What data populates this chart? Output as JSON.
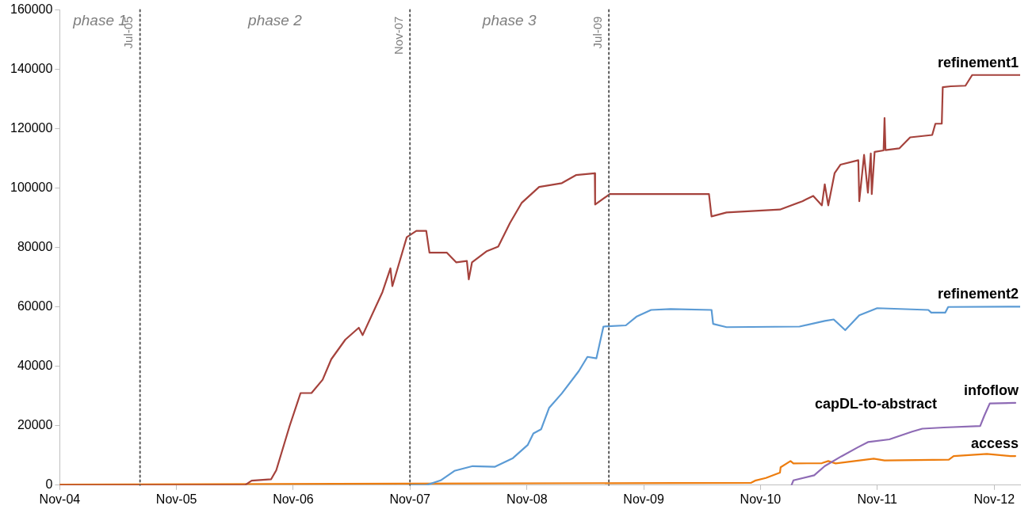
{
  "chart_data": {
    "type": "line",
    "legend": false,
    "grid": false,
    "marker": "none",
    "line_style": "solid",
    "xlim": [
      "2004-11",
      "2013-01-21"
    ],
    "xticks": [
      {
        "value": "2004-11",
        "label": "Nov-04"
      },
      {
        "value": "2005-11",
        "label": "Nov-05"
      },
      {
        "value": "2006-11",
        "label": "Nov-06"
      },
      {
        "value": "2007-11",
        "label": "Nov-07"
      },
      {
        "value": "2008-11",
        "label": "Nov-08"
      },
      {
        "value": "2009-11",
        "label": "Nov-09"
      },
      {
        "value": "2010-11",
        "label": "Nov-10"
      },
      {
        "value": "2011-11",
        "label": "Nov-11"
      },
      {
        "value": "2012-11",
        "label": "Nov-12"
      }
    ],
    "ylim": [
      0,
      160000
    ],
    "yticks": [
      0,
      20000,
      40000,
      60000,
      80000,
      100000,
      120000,
      140000,
      160000
    ],
    "ref_lines": [
      {
        "axis": "x",
        "value": "2005-07-10",
        "label": "Jul-05",
        "line_style": "dotted",
        "color": "#595959"
      },
      {
        "axis": "x",
        "value": "2007-11",
        "label": "Nov-07",
        "line_style": "dotted",
        "color": "#595959"
      },
      {
        "axis": "x",
        "value": "2009-07-15",
        "label": "Jul-09",
        "line_style": "dotted",
        "color": "#595959"
      }
    ],
    "annotations": [
      "phase 1",
      "phase 2",
      "phase 3",
      "capDL-to-abstract"
    ],
    "series": [
      {
        "name": "refinement1",
        "color": "#a5423c",
        "x": [
          "2004-11",
          "2006-06-03",
          "2006-06-24",
          "2006-08-24",
          "2006-09-09",
          "2006-10-21",
          "2006-11-24",
          "2006-12-28",
          "2007-02-01",
          "2007-02-28",
          "2007-04-13",
          "2007-05-25",
          "2007-06-06",
          "2007-08-07",
          "2007-09-01",
          "2007-09-07",
          "2007-10-22",
          "2007-11-21",
          "2007-12-22",
          "2008-01-01",
          "2008-02-24",
          "2008-03-25",
          "2008-04-27",
          "2008-05-03",
          "2008-05-13",
          "2008-06-27",
          "2008-08-03",
          "2008-09-09",
          "2008-10-15",
          "2008-12-09",
          "2009-02-18",
          "2009-04-03",
          "2009-06-01",
          "2009-06-02",
          "2009-07-18",
          "2010-05-24",
          "2010-06-01",
          "2010-07-18",
          "2011-01-01",
          "2011-03-12",
          "2011-04-15",
          "2011-05-12",
          "2011-05-21",
          "2011-06-01",
          "2011-06-21",
          "2011-07-09",
          "2011-09-03",
          "2011-09-06",
          "2011-09-21",
          "2011-10-03",
          "2011-10-12",
          "2011-10-15",
          "2011-10-24",
          "2011-11-21",
          "2011-11-24",
          "2011-11-27",
          "2012-01-09",
          "2012-02-12",
          "2012-04-21",
          "2012-05-01",
          "2012-05-21",
          "2012-05-24",
          "2012-06-18",
          "2012-08-03",
          "2012-08-24",
          "2013-01-21"
        ],
        "values": [
          0,
          0,
          1500,
          2000,
          5000,
          20000,
          31000,
          31000,
          35500,
          42400,
          49000,
          53000,
          50500,
          65000,
          73000,
          67000,
          83500,
          85600,
          85600,
          78300,
          78300,
          75000,
          75500,
          69300,
          75000,
          78700,
          80300,
          88300,
          95000,
          100400,
          101700,
          104400,
          105000,
          94500,
          98000,
          98000,
          90500,
          91800,
          92800,
          95600,
          97400,
          94200,
          101300,
          94200,
          105100,
          107900,
          109400,
          95600,
          111200,
          98500,
          111700,
          98000,
          112200,
          112700,
          123600,
          112800,
          113400,
          117100,
          117900,
          121700,
          121700,
          134000,
          134300,
          134500,
          138100,
          138100
        ]
      },
      {
        "name": "refinement2",
        "color": "#5b9bd5",
        "x": [
          "2007-11",
          "2007-12-22",
          "2008-02-05",
          "2008-03-19",
          "2008-05-15",
          "2008-07-24",
          "2008-09-18",
          "2008-11-03",
          "2008-11-21",
          "2008-12-15",
          "2009-01-09",
          "2009-02-18",
          "2009-04-12",
          "2009-05-09",
          "2009-06-06",
          "2009-06-28",
          "2009-09-06",
          "2009-10-09",
          "2009-11-24",
          "2010-01-24",
          "2010-06-01",
          "2010-06-06",
          "2010-07-18",
          "2011-03-03",
          "2011-05-21",
          "2011-06-18",
          "2011-07-24",
          "2011-09-06",
          "2011-11-01",
          "2012-04-09",
          "2012-04-18",
          "2012-06-01",
          "2012-06-10",
          "2013-01-21"
        ],
        "values": [
          0,
          0,
          1600,
          4800,
          6400,
          6200,
          9100,
          13500,
          17400,
          18800,
          26000,
          30900,
          38400,
          43200,
          42700,
          53400,
          53800,
          56700,
          59000,
          59300,
          59000,
          54300,
          53200,
          53400,
          55300,
          55800,
          52200,
          57200,
          59600,
          59000,
          58100,
          58100,
          60000,
          60100
        ]
      },
      {
        "name": "infoflow",
        "color": "#8e6bb5",
        "x": [
          "2011-02-06",
          "2011-02-12",
          "2011-04-18",
          "2011-05-21",
          "2011-07-12",
          "2011-09-01",
          "2011-10-03",
          "2011-12-09",
          "2012-02-18",
          "2012-03-21",
          "2012-05-27",
          "2012-09-18",
          "2012-10-01",
          "2012-10-18",
          "2013-01-06"
        ],
        "values": [
          0,
          1600,
          3300,
          6400,
          9700,
          12700,
          14500,
          15400,
          18000,
          19000,
          19400,
          19900,
          23400,
          27500,
          27700
        ]
      },
      {
        "name": "access",
        "color": "#ed7d0f",
        "x": [
          "2004-11",
          "2010-10-03",
          "2010-10-15",
          "2010-11-18",
          "2011-01-01",
          "2011-01-03",
          "2011-02-03",
          "2011-02-12",
          "2011-05-12",
          "2011-06-01",
          "2011-06-24",
          "2011-10-21",
          "2011-11-24",
          "2012-06-12",
          "2012-06-27",
          "2012-10-09",
          "2012-12-21",
          "2013-01-06"
        ],
        "values": [
          200,
          800,
          1500,
          2400,
          4200,
          6000,
          8100,
          7300,
          7400,
          8100,
          7300,
          8900,
          8300,
          8600,
          9800,
          10500,
          9800,
          9800
        ]
      }
    ]
  }
}
